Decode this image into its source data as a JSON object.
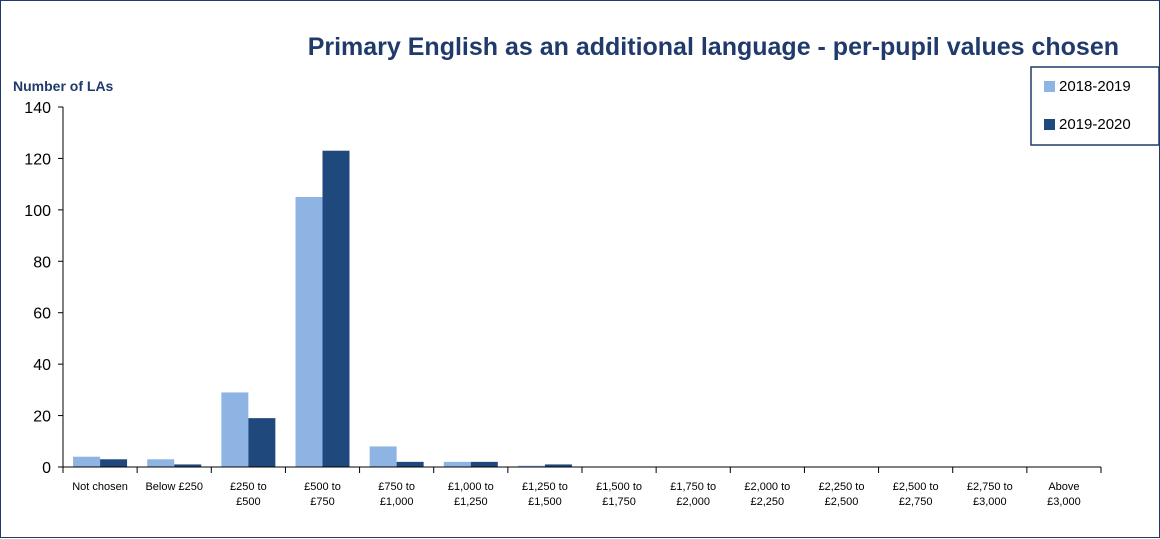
{
  "chart_data": {
    "type": "bar",
    "title": "Primary English as an additional language - per-pupil values chosen",
    "ylabel": "Number of LAs",
    "xlabel": "",
    "ylim": [
      0,
      140
    ],
    "yticks": [
      0,
      20,
      40,
      60,
      80,
      100,
      120,
      140
    ],
    "categories": [
      [
        "Not chosen"
      ],
      [
        "Below £250"
      ],
      [
        "£250 to",
        "£500"
      ],
      [
        "£500 to",
        "£750"
      ],
      [
        "£750 to",
        "£1,000"
      ],
      [
        "£1,000 to",
        "£1,250"
      ],
      [
        "£1,250 to",
        "£1,500"
      ],
      [
        "£1,500 to",
        "£1,750"
      ],
      [
        "£1,750 to",
        "£2,000"
      ],
      [
        "£2,000 to",
        "£2,250"
      ],
      [
        "£2,250 to",
        "£2,500"
      ],
      [
        "£2,500 to",
        "£2,750"
      ],
      [
        "£2,750 to",
        "£3,000"
      ],
      [
        "Above",
        "£3,000"
      ]
    ],
    "series": [
      {
        "name": "2018-2019",
        "color": "#8EB4E3",
        "values": [
          4,
          3,
          29,
          105,
          8,
          2,
          0.5,
          0,
          0,
          0,
          0,
          0,
          0,
          0
        ]
      },
      {
        "name": "2019-2020",
        "color": "#1F497D",
        "values": [
          3,
          1,
          19,
          123,
          2,
          2,
          1,
          0,
          0,
          0,
          0,
          0,
          0,
          0
        ]
      }
    ],
    "legend_position": "top-right",
    "grid": false
  }
}
